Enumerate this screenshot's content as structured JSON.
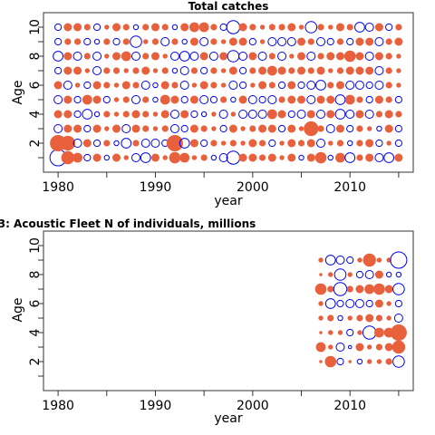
{
  "colors": {
    "positive": "#E8603C",
    "negative": "#0000EE"
  },
  "chart_data": [
    {
      "type": "bubble",
      "title": "Total catches",
      "xlabel": "year",
      "ylabel": "Age",
      "xlim": [
        1978.5,
        2016.5
      ],
      "ylim": [
        0,
        11
      ],
      "xticks": [
        1980,
        1990,
        2000,
        2010
      ],
      "yticks": [
        2,
        4,
        6,
        8,
        10
      ],
      "x": [
        1980,
        2015
      ],
      "y": [
        1,
        10
      ],
      "residuals": [
        [
          -1.0,
          0.8,
          0.6,
          -0.4,
          0.5,
          -0.3,
          0.5,
          0.3,
          -0.5,
          -0.6,
          0.5,
          0.3,
          0.7,
          0.6,
          0.3,
          0.4,
          -0.3,
          -0.5,
          -0.8,
          0.5,
          0.5,
          0.4,
          0.5,
          0.3,
          0.5,
          -0.3,
          0.5,
          0.7,
          -0.3,
          0.6,
          -0.6,
          0.4,
          0.5,
          -0.5,
          -0.6,
          0.5
        ],
        [
          1.0,
          0.9,
          -0.5,
          0.5,
          -0.4,
          0.4,
          -0.3,
          -0.6,
          0.4,
          -0.5,
          -0.5,
          -0.4,
          1.0,
          -0.6,
          0.5,
          -0.4,
          0.4,
          0.3,
          0.4,
          0.3,
          0.5,
          0.4,
          -0.4,
          0.3,
          0.5,
          0.4,
          0.5,
          -0.5,
          0.3,
          0.4,
          -0.3,
          0.4,
          0.5,
          -0.4,
          0.3,
          -0.4
        ],
        [
          -0.5,
          0.5,
          0.5,
          -0.4,
          0.5,
          0.3,
          0.5,
          -0.5,
          0.5,
          0.4,
          0.3,
          0.4,
          -0.5,
          -0.4,
          0.5,
          0.4,
          0.3,
          -0.4,
          0.5,
          0.3,
          0.4,
          0.5,
          0.5,
          -0.4,
          0.5,
          0.3,
          0.9,
          0.4,
          -0.5,
          0.5,
          -0.4,
          0.4,
          0.3,
          -0.3,
          0.5,
          -0.4
        ],
        [
          0.5,
          0.5,
          -0.4,
          -0.6,
          -0.3,
          0.4,
          0.3,
          0.4,
          0.5,
          0.4,
          0.3,
          0.5,
          -0.5,
          0.5,
          -0.4,
          -0.3,
          0.3,
          -0.5,
          0.3,
          -0.5,
          -0.5,
          -0.5,
          0.6,
          0.5,
          -0.4,
          -0.5,
          0.5,
          -0.5,
          0.5,
          -0.6,
          -0.5,
          0.5,
          -0.5,
          0.4,
          0.5,
          0.4
        ],
        [
          -0.5,
          0.5,
          -0.4,
          0.6,
          0.5,
          -0.4,
          0.3,
          0.4,
          -0.5,
          0.4,
          -0.3,
          0.6,
          0.5,
          -0.4,
          0.5,
          -0.5,
          -0.4,
          0.4,
          -0.3,
          0.5,
          -0.5,
          -0.4,
          -0.5,
          0.4,
          0.5,
          0.5,
          -0.5,
          0.5,
          0.5,
          -0.6,
          0.6,
          0.4,
          -0.4,
          0.5,
          0.4,
          -0.4
        ],
        [
          0.5,
          -0.5,
          0.3,
          -0.4,
          0.5,
          0.4,
          0.3,
          0.5,
          0.4,
          -0.5,
          -0.3,
          0.5,
          0.4,
          -0.5,
          0.3,
          0.5,
          0.4,
          0.3,
          -0.5,
          -0.4,
          0.3,
          0.5,
          0.4,
          -0.4,
          0.5,
          -0.4,
          -0.5,
          -0.6,
          0.4,
          0.5,
          -0.5,
          -0.5,
          -0.4,
          -0.5,
          0.4,
          0.3
        ],
        [
          -0.4,
          0.5,
          0.5,
          0.3,
          -0.5,
          0.4,
          0.4,
          0.3,
          0.4,
          0.5,
          0.3,
          0.4,
          -0.3,
          -0.5,
          0.4,
          -0.4,
          0.4,
          0.3,
          0.5,
          -0.4,
          0.4,
          0.5,
          0.6,
          0.5,
          0.4,
          0.5,
          0.4,
          0.5,
          0.3,
          0.4,
          0.5,
          0.5,
          0.5,
          -0.5,
          0.4,
          0.3
        ],
        [
          -0.6,
          0.5,
          -0.5,
          0.4,
          -0.5,
          0.3,
          0.5,
          0.6,
          -0.5,
          0.4,
          0.5,
          0.3,
          -0.5,
          -0.6,
          -0.5,
          0.5,
          -0.5,
          0.5,
          -0.7,
          -0.5,
          0.5,
          -0.5,
          0.4,
          -0.5,
          0.3,
          0.5,
          -0.5,
          0.4,
          0.5,
          0.5,
          0.7,
          0.5,
          -0.5,
          0.5,
          0.4,
          0.3
        ],
        [
          -0.4,
          0.4,
          0.4,
          -0.4,
          -0.3,
          0.4,
          -0.4,
          0.4,
          -0.7,
          0.3,
          0.4,
          -0.5,
          0.4,
          -0.3,
          0.5,
          -0.5,
          0.4,
          0.3,
          0.5,
          0.5,
          -0.4,
          0.3,
          -0.5,
          -0.5,
          -0.5,
          0.5,
          0.4,
          -0.5,
          -0.4,
          0.4,
          -0.4,
          0.5,
          0.5,
          -0.5,
          0.4,
          0.5
        ],
        [
          -0.4,
          0.5,
          0.5,
          0.4,
          -0.4,
          0.3,
          0.5,
          0.4,
          -0.3,
          0.4,
          0.5,
          0.4,
          -0.3,
          0.5,
          0.6,
          0.6,
          0.4,
          -0.4,
          -0.8,
          0.5,
          0.4,
          0.3,
          0.4,
          0.4,
          0.5,
          0.3,
          -0.7,
          0.4,
          0.3,
          0.5,
          0.4,
          -0.6,
          -0.5,
          0.5,
          -0.4,
          0.4
        ]
      ]
    },
    {
      "type": "bubble",
      "title": "3: Acoustic Fleet   N of individuals, millions",
      "xlabel": "year",
      "ylabel": "Age",
      "xlim": [
        1978.5,
        2016.5
      ],
      "ylim": [
        0,
        11
      ],
      "xticks": [
        1980,
        1990,
        2000,
        2010
      ],
      "yticks": [
        2,
        4,
        6,
        8,
        10
      ],
      "x": [
        2007,
        2015
      ],
      "y": [
        2,
        9
      ],
      "residuals": [
        [
          0.2,
          0.7,
          -0.4,
          0.2,
          -0.3,
          0.3,
          0.3,
          0.4,
          -0.7
        ],
        [
          0.6,
          0.3,
          -0.5,
          -0.2,
          0.5,
          0.3,
          0.4,
          0.5,
          0.8
        ],
        [
          0.2,
          0.3,
          0.3,
          -0.4,
          0.3,
          -0.8,
          0.6,
          0.6,
          1.0
        ],
        [
          0.3,
          0.4,
          -0.3,
          0.3,
          0.4,
          0.5,
          0.4,
          0.3,
          -0.5
        ],
        [
          0.3,
          -0.6,
          -0.4,
          -0.5,
          -0.5,
          -0.4,
          0.5,
          0.3,
          -0.4
        ],
        [
          0.7,
          0.4,
          -0.8,
          0.4,
          0.5,
          0.6,
          0.7,
          0.5,
          -0.7
        ],
        [
          0.2,
          0.3,
          -0.7,
          0.3,
          -0.4,
          -0.5,
          0.5,
          -0.3,
          -0.3
        ],
        [
          0.3,
          -0.6,
          -0.5,
          -0.4,
          0.3,
          0.8,
          0.3,
          0.3,
          -1.0
        ]
      ]
    }
  ]
}
